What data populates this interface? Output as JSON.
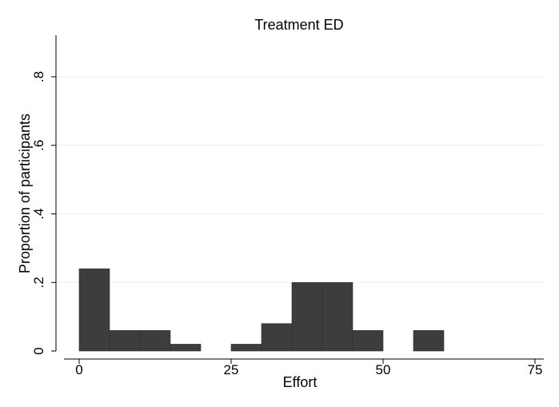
{
  "chart_data": {
    "type": "bar",
    "title": "Treatment ED",
    "xlabel": "Effort",
    "ylabel": "Proportion of participants",
    "xlim": [
      0,
      75
    ],
    "ylim": [
      0,
      0.92
    ],
    "x_ticks": [
      0,
      25,
      50,
      75
    ],
    "x_tick_labels": [
      "0",
      "25",
      "50",
      "75"
    ],
    "y_ticks": [
      0,
      0.2,
      0.4,
      0.6,
      0.8
    ],
    "y_tick_labels": [
      "0",
      ".2",
      ".4",
      ".6",
      ".8"
    ],
    "grid": true,
    "bin_width": 5,
    "bins": [
      {
        "start": 0,
        "end": 5,
        "value": 0.24
      },
      {
        "start": 5,
        "end": 10,
        "value": 0.06
      },
      {
        "start": 10,
        "end": 15,
        "value": 0.06
      },
      {
        "start": 15,
        "end": 20,
        "value": 0.02
      },
      {
        "start": 20,
        "end": 25,
        "value": 0.0
      },
      {
        "start": 25,
        "end": 30,
        "value": 0.02
      },
      {
        "start": 30,
        "end": 35,
        "value": 0.08
      },
      {
        "start": 35,
        "end": 40,
        "value": 0.2
      },
      {
        "start": 40,
        "end": 45,
        "value": 0.2
      },
      {
        "start": 45,
        "end": 50,
        "value": 0.06
      },
      {
        "start": 50,
        "end": 55,
        "value": 0.0
      },
      {
        "start": 55,
        "end": 60,
        "value": 0.06
      }
    ],
    "colors": {
      "bar": "#3d3d3d",
      "grid": "#eaeaea"
    }
  }
}
